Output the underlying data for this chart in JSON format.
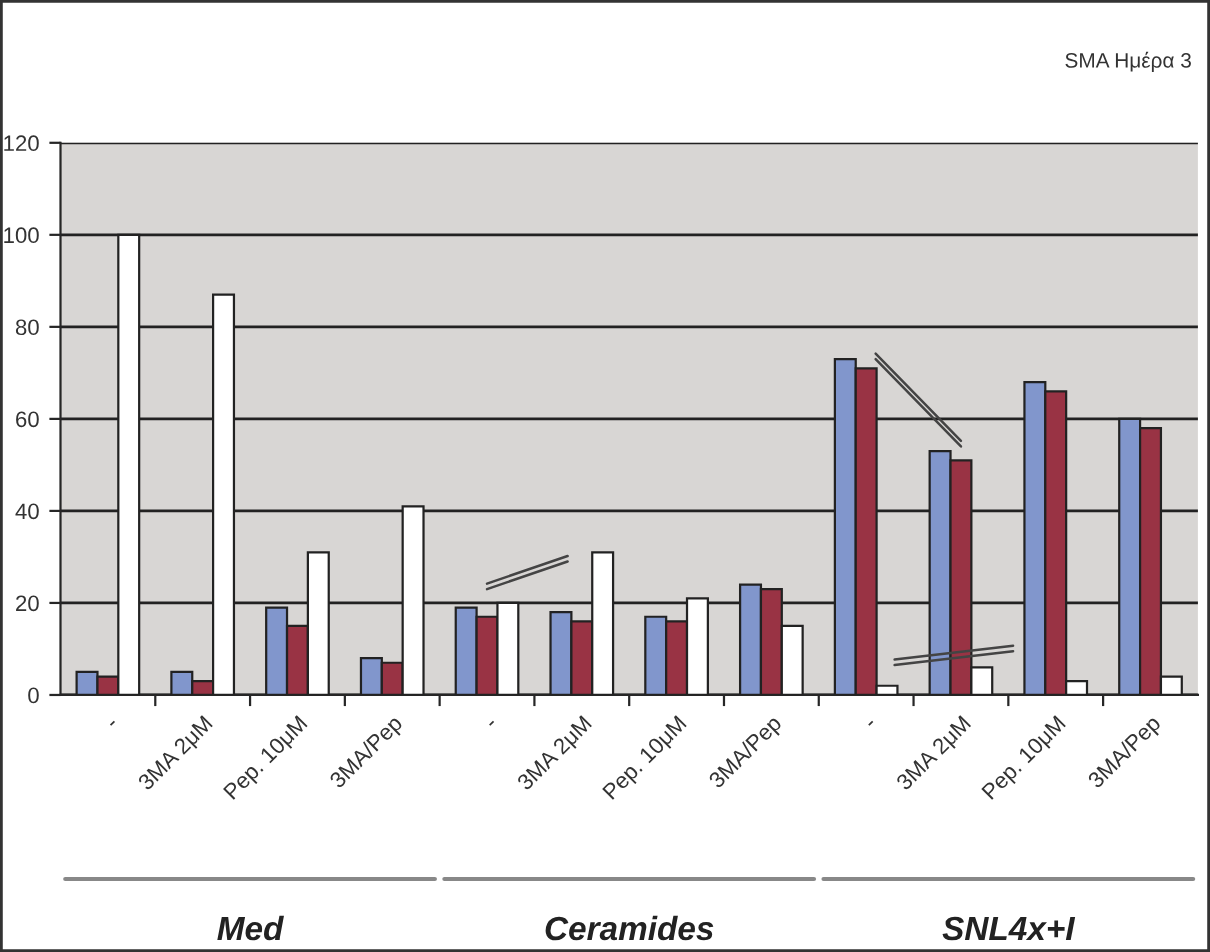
{
  "chart_data": {
    "type": "bar",
    "title": "SMA Ημέρα 3",
    "categories": [
      "-",
      "3MA 2μM",
      "Pep. 10μM",
      "3MA/Pep",
      "-",
      "3MA 2μM",
      "Pep. 10μM",
      "3MA/Pep",
      "-",
      "3MA 2μM",
      "Pep. 10μM",
      "3MA/Pep"
    ],
    "series": [
      {
        "color": "#8196cc",
        "values": [
          5,
          5,
          19,
          8,
          19,
          18,
          17,
          24,
          73,
          53,
          68,
          60
        ]
      },
      {
        "color": "#993344",
        "values": [
          4,
          3,
          15,
          7,
          17,
          16,
          16,
          23,
          71,
          51,
          66,
          58
        ]
      },
      {
        "color": "#ffffff",
        "values": [
          100,
          87,
          31,
          41,
          20,
          31,
          21,
          15,
          2,
          6,
          3,
          4
        ]
      }
    ],
    "annotations": [
      "Med",
      "Ceramides",
      "SNL4x+I"
    ],
    "ylim": [
      0,
      120
    ],
    "yticks": [
      0,
      20,
      40,
      60,
      80,
      100,
      120
    ],
    "grid": "y"
  }
}
